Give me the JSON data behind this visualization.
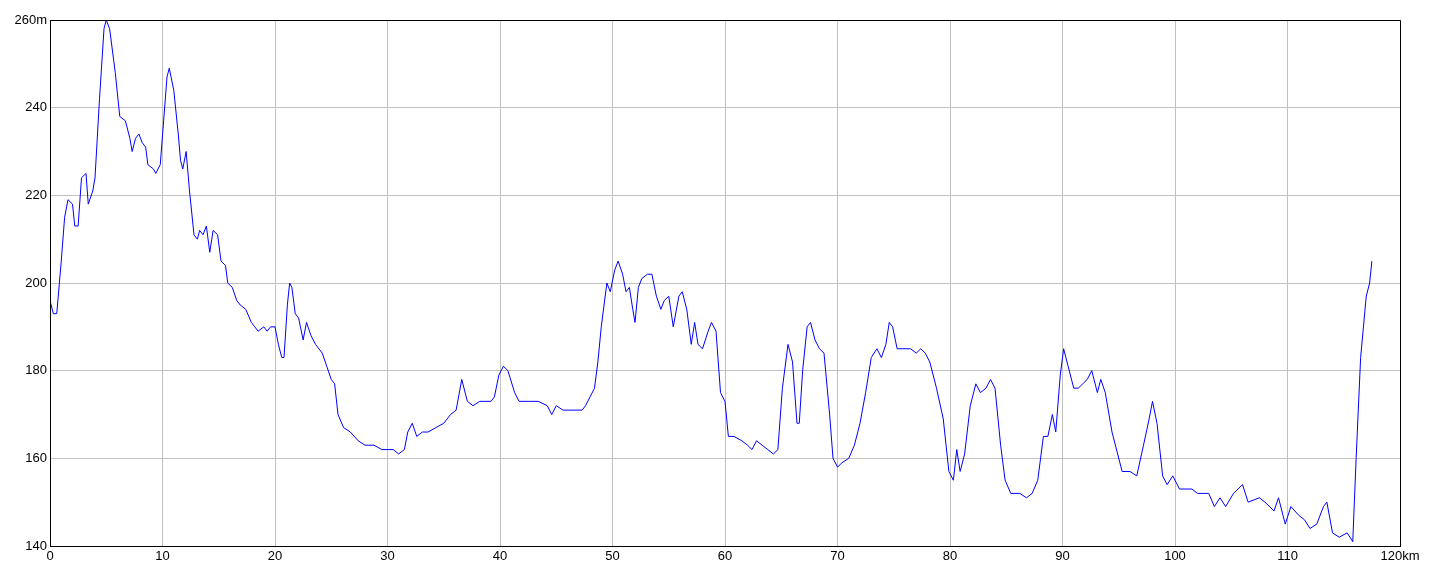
{
  "chart_data": {
    "type": "line",
    "x": [
      0,
      0.3,
      0.6,
      1,
      1.3,
      1.6,
      2,
      2.2,
      2.5,
      2.8,
      3.2,
      3.4,
      3.8,
      4,
      4.4,
      4.8,
      5,
      5.3,
      5.8,
      6.2,
      6.7,
      7.1,
      7.3,
      7.6,
      7.9,
      8.2,
      8.5,
      8.7,
      9.2,
      9.4,
      9.8,
      10.1,
      10.4,
      10.6,
      11,
      11.4,
      11.6,
      11.8,
      12.1,
      12.4,
      12.8,
      13.1,
      13.3,
      13.6,
      13.9,
      14.2,
      14.5,
      14.9,
      15.2,
      15.6,
      15.8,
      16.2,
      16.6,
      16.9,
      17.4,
      17.9,
      18.2,
      18.5,
      19,
      19.3,
      19.6,
      20,
      20.3,
      20.6,
      20.8,
      21.1,
      21.3,
      21.5,
      21.8,
      22.1,
      22.5,
      22.8,
      23.2,
      23.6,
      24.2,
      24.6,
      25,
      25.3,
      25.6,
      26.1,
      26.7,
      27.4,
      28,
      28.8,
      29.5,
      30.5,
      31,
      31.5,
      31.8,
      32.2,
      32.6,
      33.1,
      33.6,
      34.3,
      35,
      35.6,
      36.1,
      36.6,
      37.1,
      37.6,
      38.2,
      38.6,
      39.2,
      39.5,
      39.9,
      40.3,
      40.7,
      41.3,
      41.7,
      42.5,
      43.4,
      44.2,
      44.6,
      45,
      45.6,
      46.5,
      47.3,
      47.6,
      48,
      48.4,
      48.7,
      49,
      49.5,
      49.8,
      50.2,
      50.5,
      50.9,
      51.2,
      51.5,
      51.8,
      52,
      52.3,
      52.6,
      53.1,
      53.5,
      53.9,
      54.3,
      54.6,
      55,
      55.4,
      55.9,
      56.2,
      56.6,
      57,
      57.3,
      57.6,
      58,
      58.5,
      58.8,
      59.2,
      59.6,
      60,
      60.3,
      60.8,
      61.5,
      62,
      62.4,
      62.8,
      63.3,
      63.8,
      64.3,
      64.7,
      65.1,
      65.6,
      66,
      66.4,
      66.6,
      66.9,
      67.3,
      67.6,
      68,
      68.4,
      68.8,
      69.3,
      69.6,
      70,
      70.4,
      71,
      71.5,
      72,
      72.5,
      73,
      73.5,
      73.9,
      74.3,
      74.6,
      74.9,
      75.3,
      75.8,
      76.5,
      77,
      77.4,
      77.8,
      78.2,
      78.8,
      79.4,
      79.9,
      80.3,
      80.6,
      80.9,
      81.3,
      81.8,
      82.3,
      82.7,
      83.2,
      83.6,
      84,
      84.5,
      84.9,
      85.4,
      86.2,
      86.8,
      87.3,
      87.8,
      88.3,
      88.7,
      89.1,
      89.4,
      89.8,
      90.1,
      90.5,
      91,
      91.4,
      92.2,
      92.6,
      93.1,
      93.4,
      93.8,
      94.4,
      94.9,
      95.3,
      96,
      96.6,
      97.2,
      97.7,
      98,
      98.4,
      98.9,
      99.3,
      99.8,
      100.4,
      101.5,
      102,
      102.5,
      103,
      103.5,
      104,
      104.5,
      105.2,
      106,
      106.5,
      107.5,
      108,
      108.8,
      109.2,
      109.8,
      110.3,
      111,
      111.5,
      112,
      112.6,
      113.2,
      113.5,
      114,
      114.6,
      115.3,
      115.8,
      116.1,
      116.5,
      117,
      117.3,
      117.5
    ],
    "series": [
      {
        "color": "#0000ff",
        "values": [
          196,
          193,
          193,
          205,
          215,
          219,
          218,
          213,
          213,
          224,
          225,
          218,
          221,
          224,
          242,
          258,
          260,
          258,
          248,
          238,
          237,
          233,
          230,
          233,
          234,
          232,
          231,
          227,
          226,
          225,
          227,
          237,
          247,
          249,
          244,
          234,
          228,
          226,
          230,
          221,
          211,
          210,
          212,
          211,
          213,
          207,
          212,
          211,
          205,
          204,
          200,
          199,
          196,
          195,
          194,
          191,
          190,
          189,
          190,
          189,
          190,
          190,
          186,
          183,
          183,
          195,
          200,
          199,
          193,
          192,
          187,
          191,
          188,
          186,
          184,
          181,
          178,
          177,
          170,
          167,
          166,
          164,
          163,
          163,
          162,
          162,
          161,
          162,
          166,
          168,
          165,
          166,
          166,
          167,
          168,
          170,
          171,
          178,
          173,
          172,
          173,
          173,
          173,
          174,
          179,
          181,
          180,
          175,
          173,
          173,
          173,
          172,
          170,
          172,
          171,
          171,
          171,
          172,
          174,
          176,
          182,
          190,
          200,
          198,
          203,
          205,
          202,
          198,
          199,
          194,
          191,
          199,
          201,
          202,
          202,
          197,
          194,
          196,
          197,
          190,
          197,
          198,
          194,
          186,
          191,
          186,
          185,
          189,
          191,
          189,
          175,
          173,
          165,
          165,
          164,
          163,
          162,
          164,
          163,
          162,
          161,
          162,
          176,
          186,
          182,
          168,
          168,
          180,
          190,
          191,
          187,
          185,
          184,
          170,
          160,
          158,
          159,
          160,
          163,
          168,
          175,
          183,
          185,
          183,
          186,
          191,
          190,
          185,
          185,
          185,
          184,
          185,
          184,
          182,
          176,
          169,
          157,
          155,
          162,
          157,
          161,
          172,
          177,
          175,
          176,
          178,
          176,
          163,
          155,
          152,
          152,
          151,
          152,
          155,
          165,
          165,
          170,
          166,
          179,
          185,
          181,
          176,
          176,
          178,
          180,
          175,
          178,
          175,
          166,
          161,
          157,
          157,
          156,
          163,
          169,
          173,
          168,
          156,
          154,
          156,
          153,
          153,
          152,
          152,
          152,
          149,
          151,
          149,
          152,
          154,
          150,
          151,
          150,
          148,
          151,
          145,
          149,
          147,
          146,
          144,
          145,
          149,
          150,
          143,
          142,
          143,
          141,
          160,
          183,
          197,
          200,
          205
        ]
      }
    ],
    "xlim": [
      0,
      120
    ],
    "ylim": [
      140,
      260
    ],
    "xticks": [
      0,
      10,
      20,
      30,
      40,
      50,
      60,
      70,
      80,
      90,
      100,
      110,
      {
        "value": 120,
        "label": "120km"
      }
    ],
    "yticks": [
      140,
      160,
      180,
      200,
      220,
      240,
      {
        "value": 260,
        "label": "260m"
      }
    ],
    "grid": true,
    "legend": false,
    "marker": "none",
    "line_style": "solid"
  }
}
